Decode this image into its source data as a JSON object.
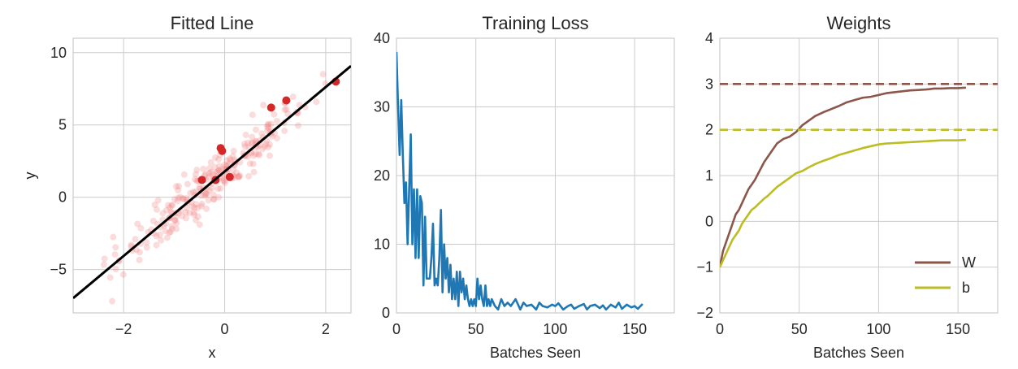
{
  "chart_data": [
    {
      "type": "scatter",
      "title": "Fitted Line",
      "xlabel": "x",
      "ylabel": "y",
      "xlim": [
        -3,
        2.5
      ],
      "ylim": [
        -8,
        11
      ],
      "xticks": [
        -2,
        0,
        2
      ],
      "yticks": [
        -5,
        0,
        5,
        10
      ],
      "grid": true,
      "fit_line": {
        "slope": 2.92,
        "intercept": 1.78
      },
      "highlight_points": {
        "x": [
          -0.45,
          -0.18,
          -0.08,
          -0.05,
          0.1,
          0.92,
          1.22,
          2.2
        ],
        "y": [
          1.2,
          1.2,
          3.4,
          3.2,
          1.4,
          6.2,
          6.7,
          8.0
        ]
      },
      "colors": {
        "points": "#f08080",
        "highlight": "#d62728",
        "line": "#000000"
      }
    },
    {
      "type": "line",
      "title": "Training Loss",
      "xlabel": "Batches Seen",
      "ylabel": "",
      "xlim": [
        0,
        175
      ],
      "ylim": [
        0,
        40
      ],
      "xticks": [
        0,
        50,
        100,
        150
      ],
      "yticks": [
        0,
        10,
        20,
        30,
        40
      ],
      "grid": true,
      "x": [
        0,
        1,
        2,
        3,
        4,
        5,
        6,
        7,
        8,
        9,
        10,
        11,
        12,
        13,
        14,
        15,
        16,
        17,
        18,
        19,
        20,
        21,
        22,
        23,
        24,
        25,
        26,
        27,
        28,
        29,
        30,
        31,
        32,
        33,
        34,
        35,
        36,
        37,
        38,
        39,
        40,
        41,
        42,
        43,
        44,
        45,
        46,
        47,
        48,
        49,
        50,
        51,
        52,
        53,
        54,
        55,
        56,
        57,
        58,
        59,
        60,
        62,
        64,
        66,
        68,
        70,
        72,
        75,
        78,
        80,
        82,
        85,
        88,
        90,
        92,
        95,
        98,
        100,
        102,
        105,
        108,
        110,
        112,
        115,
        118,
        120,
        122,
        125,
        128,
        130,
        132,
        135,
        138,
        140,
        142,
        145,
        148,
        150,
        152,
        155
      ],
      "y": [
        38,
        30,
        23,
        31,
        23,
        16,
        19,
        10,
        18,
        26,
        10,
        18,
        8,
        18,
        8,
        17,
        16,
        4,
        14,
        5,
        5,
        5,
        8,
        13,
        4,
        5,
        4,
        8,
        15,
        3,
        10,
        5,
        8,
        3,
        7,
        2,
        5,
        2,
        6,
        1,
        6,
        3,
        5,
        2,
        4,
        2,
        1,
        2,
        1,
        2,
        1,
        5,
        2,
        4,
        2,
        1,
        4,
        1,
        2,
        1,
        2,
        1,
        0.5,
        2,
        1,
        1.5,
        1,
        2,
        0.5,
        1.5,
        1,
        1.2,
        0.5,
        1.5,
        1,
        0.8,
        1.2,
        1,
        1.4,
        0.5,
        1,
        1.2,
        0.6,
        1,
        1.3,
        0.5,
        1,
        1.2,
        0.7,
        1.1,
        0.5,
        1.2,
        0.8,
        1.5,
        0.6,
        1.2,
        0.8,
        1,
        0.6,
        1.3
      ],
      "colors": {
        "line": "#1f77b4"
      }
    },
    {
      "type": "line",
      "title": "Weights",
      "xlabel": "Batches Seen",
      "ylabel": "",
      "xlim": [
        0,
        175
      ],
      "ylim": [
        -2,
        4
      ],
      "xticks": [
        0,
        50,
        100,
        150
      ],
      "yticks": [
        -2,
        -1,
        0,
        1,
        2,
        3,
        4
      ],
      "grid": true,
      "legend": "lower-right",
      "x": [
        0,
        2,
        4,
        6,
        8,
        10,
        12,
        14,
        16,
        18,
        20,
        22,
        25,
        28,
        30,
        33,
        36,
        40,
        44,
        48,
        52,
        56,
        60,
        65,
        70,
        75,
        80,
        85,
        90,
        95,
        100,
        105,
        110,
        115,
        120,
        125,
        130,
        135,
        140,
        145,
        150,
        155
      ],
      "series": [
        {
          "name": "W",
          "color": "#8c564b",
          "target": 3,
          "values": [
            -1.0,
            -0.65,
            -0.45,
            -0.25,
            -0.05,
            0.15,
            0.25,
            0.4,
            0.55,
            0.7,
            0.8,
            0.9,
            1.1,
            1.3,
            1.4,
            1.55,
            1.7,
            1.8,
            1.85,
            1.95,
            2.1,
            2.2,
            2.3,
            2.38,
            2.45,
            2.52,
            2.6,
            2.65,
            2.7,
            2.72,
            2.76,
            2.8,
            2.82,
            2.84,
            2.86,
            2.87,
            2.88,
            2.9,
            2.9,
            2.91,
            2.91,
            2.92
          ]
        },
        {
          "name": "b",
          "color": "#bcbd22",
          "target": 2,
          "values": [
            -1.0,
            -0.85,
            -0.7,
            -0.55,
            -0.4,
            -0.3,
            -0.2,
            -0.05,
            0.05,
            0.15,
            0.25,
            0.3,
            0.4,
            0.5,
            0.55,
            0.65,
            0.75,
            0.85,
            0.95,
            1.05,
            1.1,
            1.18,
            1.25,
            1.32,
            1.38,
            1.45,
            1.5,
            1.55,
            1.6,
            1.64,
            1.68,
            1.7,
            1.71,
            1.72,
            1.73,
            1.74,
            1.75,
            1.76,
            1.77,
            1.77,
            1.77,
            1.78
          ]
        }
      ]
    }
  ]
}
